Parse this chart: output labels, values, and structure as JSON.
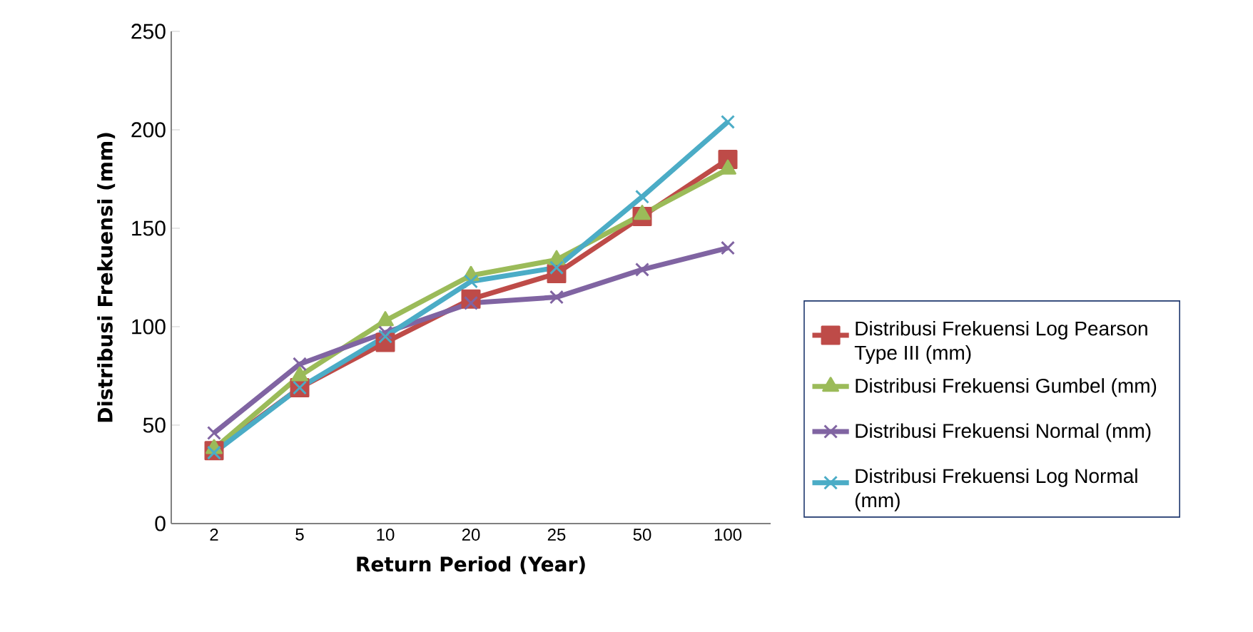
{
  "chart_data": {
    "type": "line",
    "xlabel": "Return Period (Year)",
    "ylabel": "Distribusi Frekuensi (mm)",
    "categories": [
      "2",
      "5",
      "10",
      "20",
      "25",
      "50",
      "100"
    ],
    "ylim": [
      0,
      250
    ],
    "yticks": [
      0,
      50,
      100,
      150,
      200,
      250
    ],
    "grid": false,
    "legend": "right",
    "series": [
      {
        "name": "Distribusi Frekuensi Log Pearson Type III (mm)",
        "color": "#be4b48",
        "marker": "square",
        "values": [
          37,
          69,
          92,
          114,
          127,
          156,
          185
        ]
      },
      {
        "name": "Distribusi Frekuensi Gumbel (mm)",
        "color": "#9bbb59",
        "marker": "triangle",
        "values": [
          38,
          75,
          103,
          126,
          134,
          157,
          180
        ]
      },
      {
        "name": "Distribusi Frekuensi Normal (mm)",
        "color": "#8064a2",
        "marker": "cross",
        "values": [
          46,
          81,
          97,
          112,
          115,
          129,
          140
        ]
      },
      {
        "name": "Distribusi Frekuensi Log Normal (mm)",
        "color": "#4bacc6",
        "marker": "cross",
        "values": [
          36,
          69,
          95,
          123,
          130,
          166,
          204
        ]
      }
    ]
  }
}
